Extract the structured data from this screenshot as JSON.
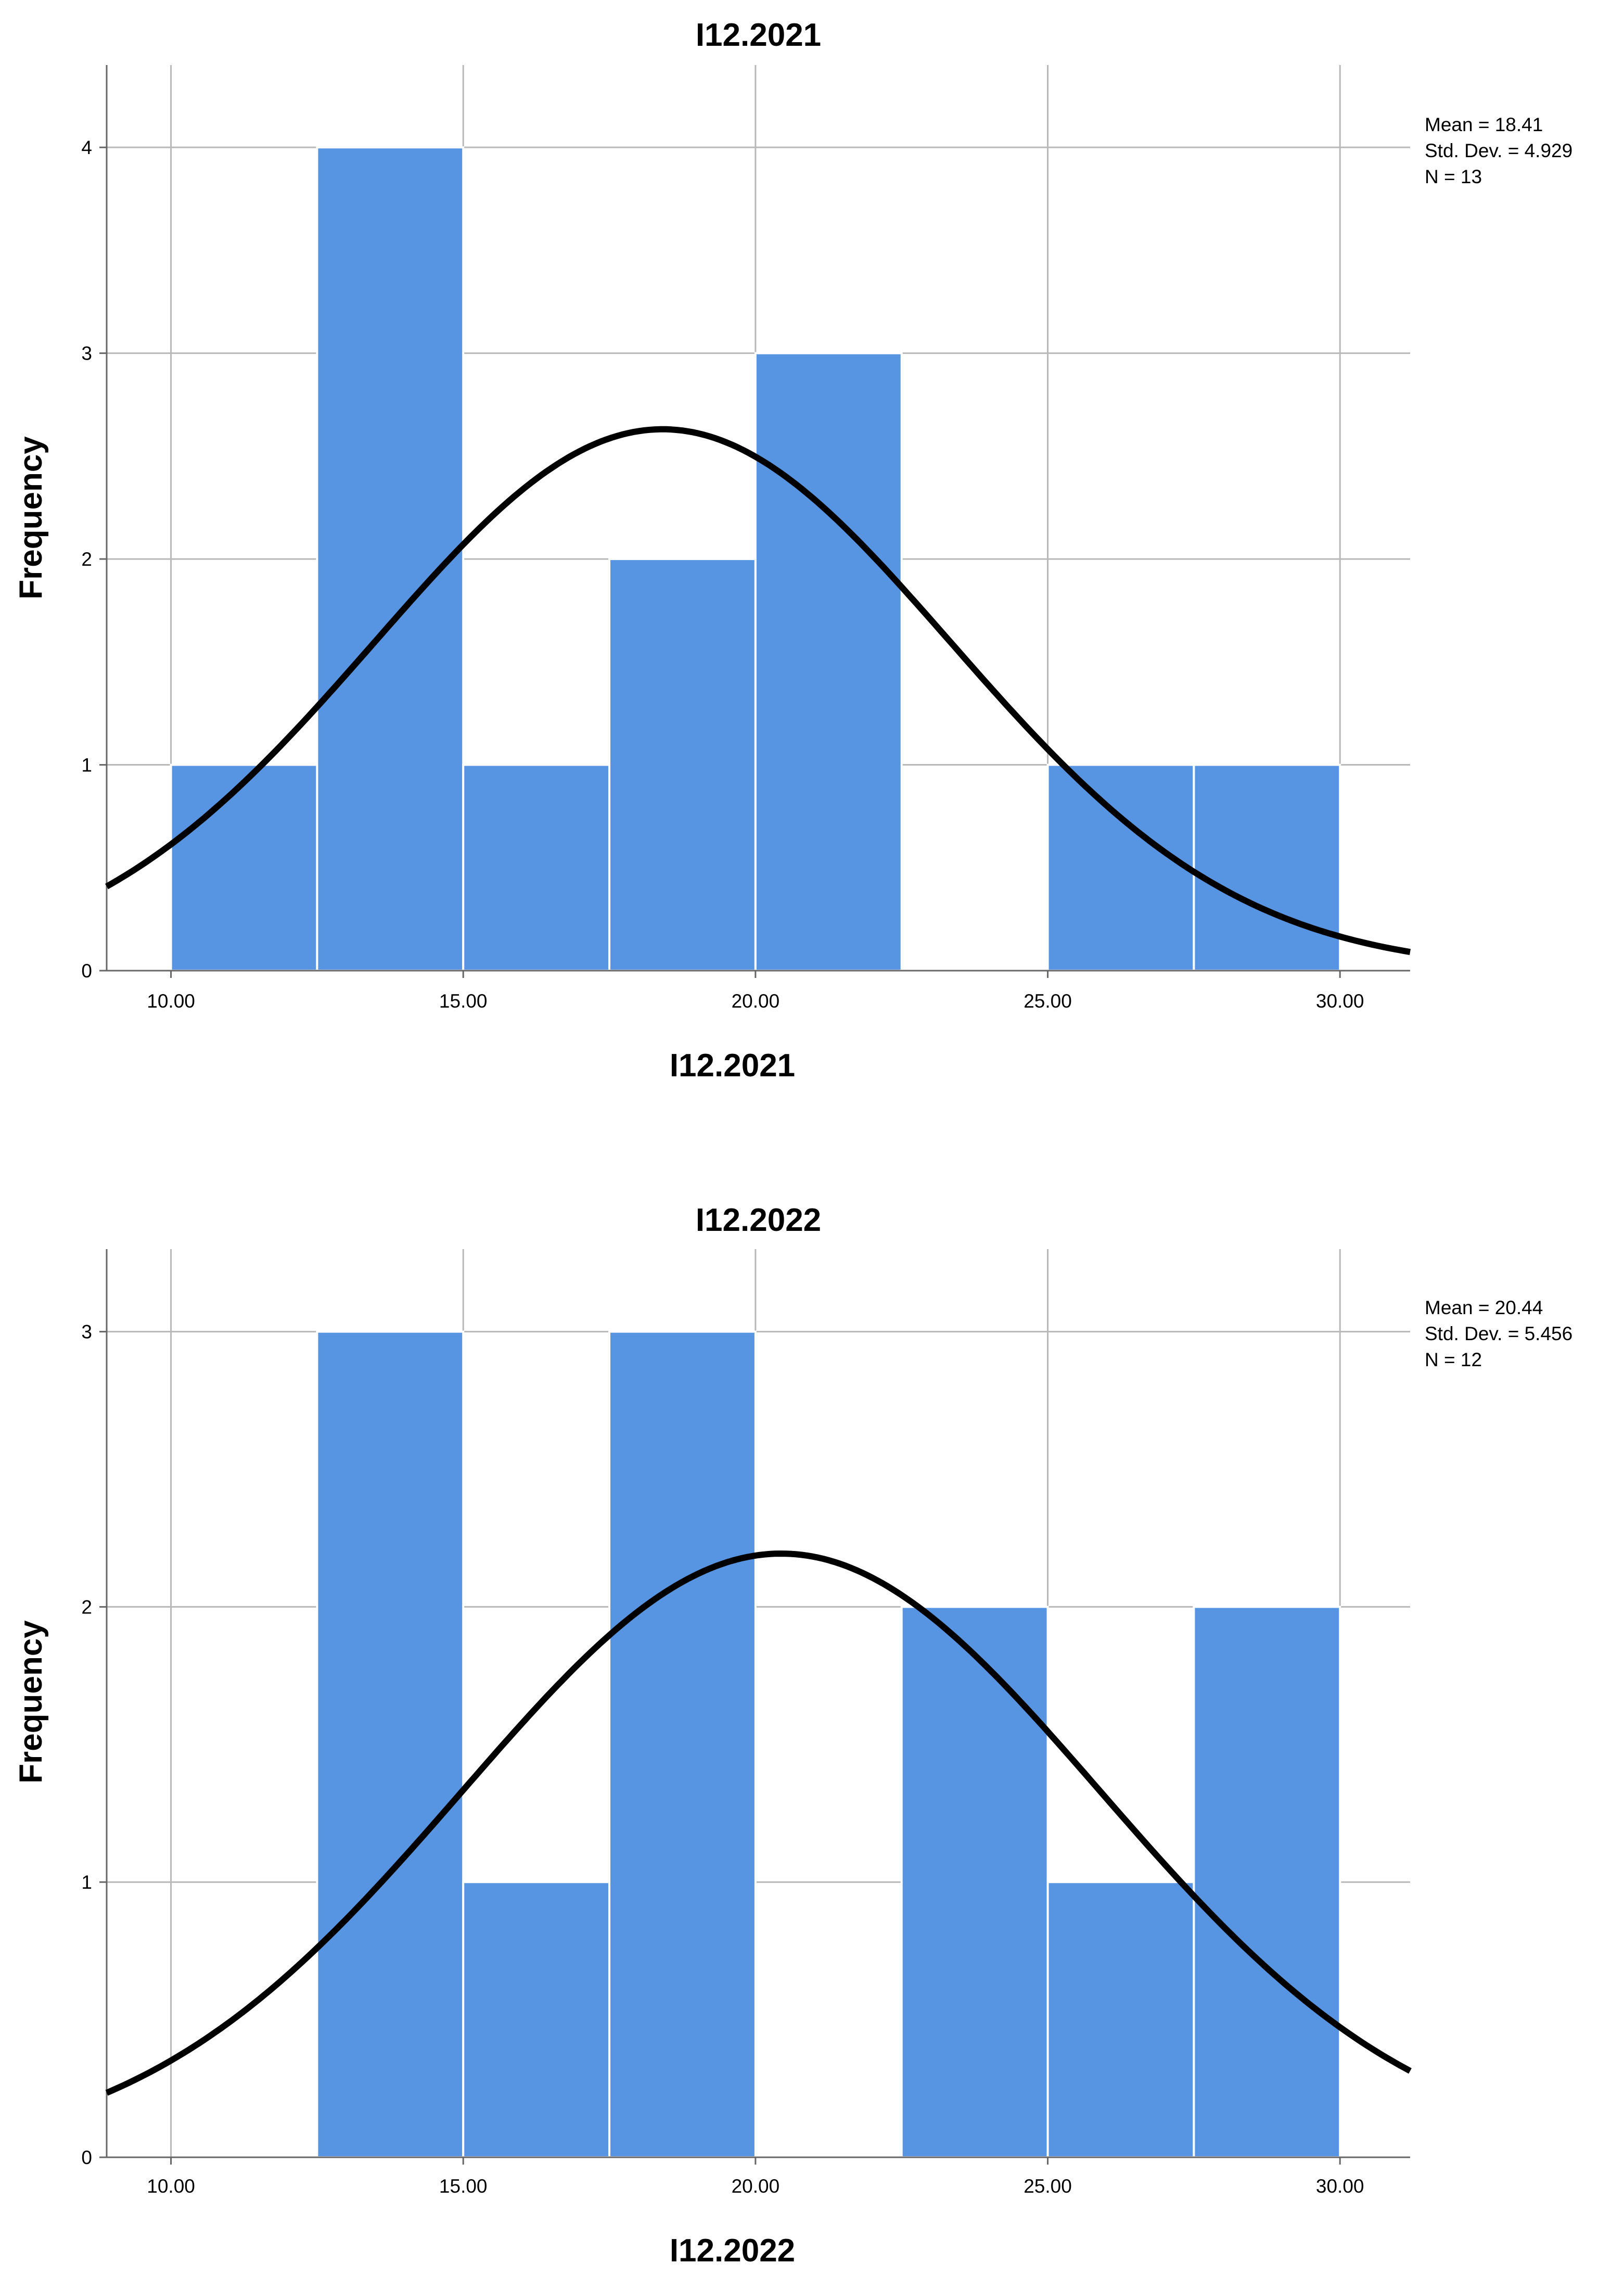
{
  "colors": {
    "bar": "#5795e3",
    "curve": "#000000",
    "grid": "#b8b8b8"
  },
  "chart_data": [
    {
      "type": "bar",
      "title": "I12.2021",
      "xlabel": "I12.2021",
      "ylabel": "Frequency",
      "xlim": [
        8.9,
        31.2
      ],
      "ylim": [
        0,
        4.4
      ],
      "bin_width": 2.5,
      "bins": [
        10,
        12.5,
        15,
        17.5,
        20,
        22.5,
        25,
        27.5
      ],
      "values": [
        1,
        4,
        1,
        2,
        3,
        0,
        1,
        1
      ],
      "x_ticks": [
        "10.00",
        "15.00",
        "20.00",
        "25.00",
        "30.00"
      ],
      "y_ticks": [
        "0",
        "1",
        "2",
        "3",
        "4"
      ],
      "grid": true,
      "normal_curve": {
        "mean": 18.41,
        "sd": 4.929,
        "n": 13
      },
      "stats": {
        "mean": "Mean = 18.41",
        "sd": "Std. Dev. = 4.929",
        "n": "N = 13"
      },
      "legend_position": "top-right"
    },
    {
      "type": "bar",
      "title": "I12.2022",
      "xlabel": "I12.2022",
      "ylabel": "Frequency",
      "xlim": [
        8.9,
        31.2
      ],
      "ylim": [
        0,
        3.3
      ],
      "bin_width": 2.5,
      "bins": [
        10,
        12.5,
        15,
        17.5,
        20,
        22.5,
        25,
        27.5
      ],
      "values": [
        0,
        3,
        1,
        3,
        0,
        2,
        1,
        2
      ],
      "x_ticks": [
        "10.00",
        "15.00",
        "20.00",
        "25.00",
        "30.00"
      ],
      "y_ticks": [
        "0",
        "1",
        "2",
        "3"
      ],
      "grid": true,
      "normal_curve": {
        "mean": 20.44,
        "sd": 5.456,
        "n": 12
      },
      "stats": {
        "mean": "Mean = 20.44",
        "sd": "Std. Dev. = 5.456",
        "n": "N = 12"
      },
      "legend_position": "top-right"
    }
  ]
}
